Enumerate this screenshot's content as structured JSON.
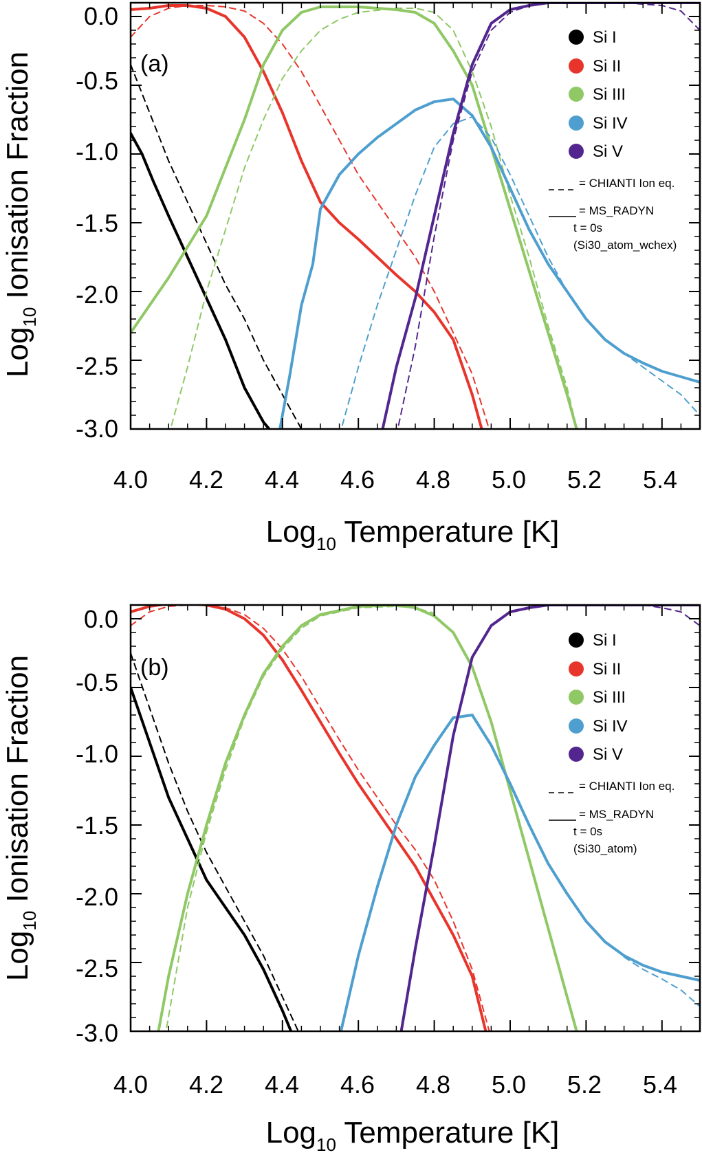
{
  "colors": {
    "Si I": "#000000",
    "Si II": "#e8352c",
    "Si III": "#8fc865",
    "Si IV": "#4e9fcf",
    "Si V": "#53268f"
  },
  "chart_data": [
    {
      "type": "line",
      "panel_label": "(a)",
      "xlabel_base": "Log",
      "xlabel_sub": "10",
      "xlabel_rest": " Temperature [K]",
      "ylabel_base": "Log",
      "ylabel_sub": "10",
      "ylabel_rest": " Ionisation Fraction",
      "xlim": [
        4.0,
        5.5
      ],
      "ylim": [
        -3.0,
        0.1
      ],
      "xticks": [
        "4.0",
        "4.2",
        "4.4",
        "4.6",
        "4.8",
        "5.0",
        "5.2",
        "5.4"
      ],
      "yticks": [
        "0.0",
        "-0.5",
        "-1.0",
        "-1.5",
        "-2.0",
        "-2.5",
        "-3.0"
      ],
      "legend": [
        "Si I",
        "Si II",
        "Si III",
        "Si IV",
        "Si V"
      ],
      "legend_position": "top-right",
      "note_dashed": "= CHIANTI Ion eq.",
      "note_solid": [
        "= MS_RADYN",
        "t = 0s",
        "(Si30_atom_wchex)"
      ],
      "series": [
        {
          "name": "Si I",
          "style": "solid",
          "x": [
            4.0,
            4.03,
            4.06,
            4.1,
            4.15,
            4.2,
            4.25,
            4.3,
            4.35,
            4.38
          ],
          "y": [
            -0.85,
            -1.0,
            -1.2,
            -1.45,
            -1.75,
            -2.05,
            -2.35,
            -2.7,
            -2.95,
            -3.05
          ]
        },
        {
          "name": "Si I",
          "style": "dashed",
          "x": [
            4.0,
            4.05,
            4.1,
            4.15,
            4.2,
            4.25,
            4.3,
            4.35,
            4.4,
            4.45
          ],
          "y": [
            -0.35,
            -0.7,
            -1.05,
            -1.35,
            -1.65,
            -1.95,
            -2.2,
            -2.5,
            -2.75,
            -3.0
          ]
        },
        {
          "name": "Si II",
          "style": "solid",
          "x": [
            4.0,
            4.05,
            4.1,
            4.15,
            4.2,
            4.25,
            4.3,
            4.35,
            4.4,
            4.45,
            4.5,
            4.55,
            4.6,
            4.65,
            4.7,
            4.75,
            4.8,
            4.85,
            4.9,
            4.93
          ],
          "y": [
            0.05,
            0.06,
            0.08,
            0.08,
            0.06,
            0.0,
            -0.15,
            -0.4,
            -0.7,
            -1.05,
            -1.35,
            -1.5,
            -1.62,
            -1.75,
            -1.88,
            -2.0,
            -2.15,
            -2.35,
            -2.75,
            -3.05
          ]
        },
        {
          "name": "Si II",
          "style": "dashed",
          "x": [
            4.0,
            4.05,
            4.1,
            4.15,
            4.2,
            4.25,
            4.3,
            4.35,
            4.4,
            4.45,
            4.5,
            4.55,
            4.6,
            4.65,
            4.7,
            4.75,
            4.8,
            4.85,
            4.9,
            4.95
          ],
          "y": [
            -0.15,
            0.0,
            0.06,
            0.08,
            0.08,
            0.07,
            0.04,
            -0.05,
            -0.2,
            -0.4,
            -0.65,
            -0.9,
            -1.15,
            -1.35,
            -1.55,
            -1.75,
            -2.0,
            -2.3,
            -2.6,
            -3.05
          ]
        },
        {
          "name": "Si III",
          "style": "solid",
          "x": [
            4.0,
            4.1,
            4.2,
            4.3,
            4.35,
            4.4,
            4.45,
            4.5,
            4.6,
            4.7,
            4.75,
            4.8,
            4.85,
            4.9,
            4.95,
            5.0,
            5.05,
            5.1,
            5.15,
            5.18
          ],
          "y": [
            -2.3,
            -1.9,
            -1.45,
            -0.75,
            -0.35,
            -0.1,
            0.03,
            0.07,
            0.07,
            0.05,
            0.03,
            -0.05,
            -0.25,
            -0.5,
            -0.95,
            -1.4,
            -1.85,
            -2.3,
            -2.75,
            -3.05
          ]
        },
        {
          "name": "Si III",
          "style": "dashed",
          "x": [
            4.1,
            4.15,
            4.2,
            4.25,
            4.3,
            4.35,
            4.4,
            4.45,
            4.5,
            4.55,
            4.6,
            4.7,
            4.75,
            4.8,
            4.85,
            4.9,
            4.95,
            5.0,
            5.05,
            5.1,
            5.15,
            5.18
          ],
          "y": [
            -3.05,
            -2.55,
            -2.0,
            -1.55,
            -1.1,
            -0.75,
            -0.45,
            -0.25,
            -0.1,
            -0.02,
            0.03,
            0.06,
            0.06,
            0.03,
            -0.1,
            -0.4,
            -0.8,
            -1.3,
            -1.75,
            -2.25,
            -2.7,
            -3.05
          ]
        },
        {
          "name": "Si IV",
          "style": "solid",
          "x": [
            4.39,
            4.42,
            4.45,
            4.48,
            4.5,
            4.55,
            4.6,
            4.65,
            4.7,
            4.75,
            4.8,
            4.85,
            4.9,
            4.95,
            5.0,
            5.05,
            5.1,
            5.15,
            5.2,
            5.25,
            5.3,
            5.35,
            5.4,
            5.45,
            5.5
          ],
          "y": [
            -3.05,
            -2.6,
            -2.1,
            -1.8,
            -1.4,
            -1.15,
            -1.0,
            -0.88,
            -0.78,
            -0.68,
            -0.62,
            -0.6,
            -0.72,
            -0.95,
            -1.25,
            -1.55,
            -1.8,
            -2.0,
            -2.2,
            -2.35,
            -2.45,
            -2.52,
            -2.58,
            -2.62,
            -2.66
          ]
        },
        {
          "name": "Si IV",
          "style": "dashed",
          "x": [
            4.55,
            4.6,
            4.65,
            4.7,
            4.75,
            4.8,
            4.85,
            4.9,
            4.95,
            5.0,
            5.05,
            5.1,
            5.15,
            5.2,
            5.25,
            5.3,
            5.35,
            5.4,
            5.45,
            5.5
          ],
          "y": [
            -3.05,
            -2.55,
            -2.1,
            -1.7,
            -1.3,
            -0.95,
            -0.78,
            -0.73,
            -0.88,
            -1.15,
            -1.45,
            -1.75,
            -2.0,
            -2.2,
            -2.35,
            -2.45,
            -2.55,
            -2.65,
            -2.75,
            -2.9
          ]
        },
        {
          "name": "Si V",
          "style": "solid",
          "x": [
            4.66,
            4.7,
            4.75,
            4.8,
            4.85,
            4.9,
            4.95,
            5.0,
            5.05,
            5.1,
            5.2,
            5.3,
            5.4,
            5.5
          ],
          "y": [
            -3.05,
            -2.55,
            -2.05,
            -1.45,
            -0.85,
            -0.35,
            -0.05,
            0.05,
            0.08,
            0.1,
            0.1,
            0.1,
            0.1,
            0.1
          ]
        },
        {
          "name": "Si V",
          "style": "dashed",
          "x": [
            4.7,
            4.75,
            4.8,
            4.85,
            4.9,
            4.95,
            5.0,
            5.05,
            5.1,
            5.2,
            5.3,
            5.4,
            5.45,
            5.5
          ],
          "y": [
            -3.05,
            -2.4,
            -1.6,
            -0.9,
            -0.4,
            -0.1,
            0.03,
            0.08,
            0.1,
            0.1,
            0.1,
            0.08,
            0.04,
            -0.1
          ]
        }
      ]
    },
    {
      "type": "line",
      "panel_label": "(b)",
      "xlabel_base": "Log",
      "xlabel_sub": "10",
      "xlabel_rest": " Temperature [K]",
      "ylabel_base": "Log",
      "ylabel_sub": "10",
      "ylabel_rest": " Ionisation Fraction",
      "xlim": [
        4.0,
        5.5
      ],
      "ylim": [
        -3.0,
        0.1
      ],
      "xticks": [
        "4.0",
        "4.2",
        "4.4",
        "4.6",
        "4.8",
        "5.0",
        "5.2",
        "5.4"
      ],
      "yticks": [
        "0.0",
        "-0.5",
        "-1.0",
        "-1.5",
        "-2.0",
        "-2.5",
        "-3.0"
      ],
      "legend": [
        "Si I",
        "Si II",
        "Si III",
        "Si IV",
        "Si V"
      ],
      "legend_position": "top-right",
      "note_dashed": "= CHIANTI Ion eq.",
      "note_solid": [
        "= MS_RADYN",
        "t = 0s",
        "(Si30_atom)"
      ],
      "series": [
        {
          "name": "Si I",
          "style": "solid",
          "x": [
            4.0,
            4.05,
            4.1,
            4.15,
            4.2,
            4.25,
            4.3,
            4.35,
            4.4,
            4.43
          ],
          "y": [
            -0.5,
            -0.9,
            -1.3,
            -1.6,
            -1.9,
            -2.1,
            -2.3,
            -2.55,
            -2.85,
            -3.05
          ]
        },
        {
          "name": "Si I",
          "style": "dashed",
          "x": [
            4.0,
            4.05,
            4.1,
            4.15,
            4.2,
            4.25,
            4.3,
            4.35,
            4.4,
            4.45
          ],
          "y": [
            -0.25,
            -0.65,
            -1.05,
            -1.4,
            -1.7,
            -1.95,
            -2.2,
            -2.45,
            -2.75,
            -3.05
          ]
        },
        {
          "name": "Si II",
          "style": "solid",
          "x": [
            4.0,
            4.05,
            4.1,
            4.15,
            4.2,
            4.25,
            4.3,
            4.35,
            4.4,
            4.45,
            4.5,
            4.55,
            4.6,
            4.65,
            4.7,
            4.75,
            4.8,
            4.85,
            4.9,
            4.94
          ],
          "y": [
            0.05,
            0.09,
            0.11,
            0.11,
            0.1,
            0.07,
            0.0,
            -0.12,
            -0.3,
            -0.52,
            -0.75,
            -0.98,
            -1.2,
            -1.4,
            -1.6,
            -1.8,
            -2.05,
            -2.3,
            -2.6,
            -3.05
          ]
        },
        {
          "name": "Si II",
          "style": "dashed",
          "x": [
            4.0,
            4.05,
            4.1,
            4.15,
            4.2,
            4.25,
            4.3,
            4.35,
            4.4,
            4.45,
            4.5,
            4.55,
            4.6,
            4.65,
            4.7,
            4.75,
            4.8,
            4.85,
            4.9,
            4.95
          ],
          "y": [
            -0.05,
            0.05,
            0.09,
            0.1,
            0.1,
            0.08,
            0.03,
            -0.07,
            -0.22,
            -0.42,
            -0.65,
            -0.88,
            -1.1,
            -1.3,
            -1.5,
            -1.68,
            -1.9,
            -2.2,
            -2.55,
            -3.05
          ]
        },
        {
          "name": "Si III",
          "style": "solid",
          "x": [
            4.07,
            4.1,
            4.15,
            4.2,
            4.25,
            4.3,
            4.35,
            4.4,
            4.45,
            4.5,
            4.6,
            4.7,
            4.75,
            4.8,
            4.85,
            4.9,
            4.95,
            5.0,
            5.05,
            5.1,
            5.15,
            5.18
          ],
          "y": [
            -3.05,
            -2.6,
            -2.0,
            -1.5,
            -1.05,
            -0.7,
            -0.4,
            -0.2,
            -0.05,
            0.03,
            0.09,
            0.1,
            0.08,
            0.02,
            -0.1,
            -0.35,
            -0.75,
            -1.25,
            -1.75,
            -2.25,
            -2.75,
            -3.05
          ]
        },
        {
          "name": "Si III",
          "style": "dashed",
          "x": [
            4.09,
            4.15,
            4.2,
            4.25,
            4.3,
            4.35,
            4.4,
            4.45,
            4.5,
            4.6,
            4.7,
            4.75,
            4.8
          ],
          "y": [
            -3.05,
            -2.1,
            -1.55,
            -1.1,
            -0.72,
            -0.42,
            -0.22,
            -0.07,
            0.02,
            0.08,
            0.09,
            0.08,
            0.04
          ]
        },
        {
          "name": "Si IV",
          "style": "solid",
          "x": [
            4.55,
            4.6,
            4.65,
            4.7,
            4.75,
            4.8,
            4.85,
            4.9,
            4.95,
            5.0,
            5.05,
            5.1,
            5.15,
            5.2,
            5.25,
            5.3,
            5.35,
            5.4,
            5.45,
            5.5
          ],
          "y": [
            -3.05,
            -2.45,
            -1.95,
            -1.5,
            -1.15,
            -0.92,
            -0.72,
            -0.7,
            -0.92,
            -1.2,
            -1.5,
            -1.78,
            -2.0,
            -2.2,
            -2.35,
            -2.45,
            -2.52,
            -2.57,
            -2.6,
            -2.63
          ]
        },
        {
          "name": "Si IV",
          "style": "dashed",
          "x": [
            5.3,
            5.35,
            5.4,
            5.45,
            5.5
          ],
          "y": [
            -2.46,
            -2.55,
            -2.62,
            -2.7,
            -2.82
          ]
        },
        {
          "name": "Si V",
          "style": "solid",
          "x": [
            4.71,
            4.75,
            4.8,
            4.85,
            4.9,
            4.95,
            5.0,
            5.05,
            5.1,
            5.2,
            5.3,
            5.4,
            5.5
          ],
          "y": [
            -3.05,
            -2.4,
            -1.65,
            -0.85,
            -0.28,
            -0.05,
            0.05,
            0.08,
            0.1,
            0.1,
            0.1,
            0.1,
            0.1
          ]
        },
        {
          "name": "Si V",
          "style": "dashed",
          "x": [
            5.35,
            5.4,
            5.45,
            5.5
          ],
          "y": [
            0.1,
            0.08,
            0.05,
            -0.05
          ]
        }
      ]
    }
  ]
}
